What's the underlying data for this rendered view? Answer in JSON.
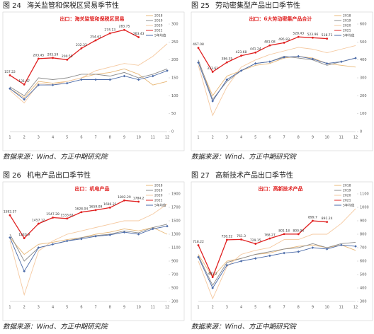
{
  "chart_data": [
    {
      "type": "line",
      "figure_label": "图 24",
      "title": "海关监管和保税区贸易季节性",
      "subtitle": "出口：海关监管和保税区贸易",
      "source": "数据来源：Wind、方正中期研究院",
      "categories": [
        "1",
        "2",
        "3",
        "4",
        "5",
        "6",
        "7",
        "8",
        "9",
        "10",
        "11",
        "12"
      ],
      "ylim": [
        0,
        300
      ],
      "yticks": [
        0,
        50,
        100,
        150,
        200,
        250,
        300
      ],
      "legend": "upper right",
      "series": [
        {
          "name": "2018",
          "color": "#e8b878",
          "values": [
            120,
            95,
            140,
            135,
            140,
            150,
            160,
            165,
            175,
            160,
            130,
            140
          ]
        },
        {
          "name": "2019",
          "color": "#8c8c8c",
          "values": [
            125,
            100,
            150,
            145,
            150,
            160,
            160,
            155,
            165,
            150,
            160,
            175
          ]
        },
        {
          "name": "2020",
          "color": "#f5c9a0",
          "values": [
            115,
            80,
            135,
            130,
            140,
            150,
            170,
            180,
            190,
            185,
            210,
            245
          ]
        },
        {
          "name": "2021",
          "color": "#e02020",
          "values": [
            157.22,
            131.47,
            203.45,
            205.59,
            200.55,
            232.33,
            254.61,
            274.13,
            283.75,
            263.43,
            null,
            null
          ]
        },
        {
          "name": "5年均值",
          "color": "#4a6aa8",
          "values": [
            120,
            90,
            130,
            130,
            135,
            145,
            145,
            145,
            155,
            145,
            155,
            170
          ]
        }
      ]
    },
    {
      "type": "line",
      "figure_label": "图 25",
      "title": "劳动密集型产品出口季节性",
      "subtitle": "出口：6大劳动密集产品合计",
      "source": "数据来源：Wind、方正中期研究院",
      "categories": [
        "1",
        "2",
        "3",
        "4",
        "5",
        "6",
        "7",
        "8",
        "9",
        "10",
        "11",
        "12"
      ],
      "ylim": [
        0,
        600
      ],
      "yticks": [
        0,
        100,
        200,
        300,
        400,
        500,
        600
      ],
      "legend": "upper right",
      "series": [
        {
          "name": "2018",
          "color": "#e8b878",
          "values": [
            390,
            200,
            310,
            340,
            370,
            380,
            410,
            420,
            410,
            380,
            370,
            360
          ]
        },
        {
          "name": "2019",
          "color": "#8c8c8c",
          "values": [
            400,
            180,
            280,
            340,
            380,
            390,
            420,
            410,
            400,
            370,
            390,
            410
          ]
        },
        {
          "name": "2020",
          "color": "#f5c9a0",
          "values": [
            370,
            90,
            250,
            360,
            400,
            430,
            450,
            470,
            460,
            440,
            460,
            480
          ]
        },
        {
          "name": "2021",
          "color": "#e02020",
          "values": [
            467.08,
            333.61,
            386.35,
            423.68,
            441.24,
            481.08,
            495.83,
            528.43,
            523.96,
            518.71,
            null,
            null
          ]
        },
        {
          "name": "5年均值",
          "color": "#4a6aa8",
          "values": [
            385,
            170,
            290,
            340,
            380,
            390,
            415,
            420,
            405,
            380,
            390,
            410
          ]
        }
      ]
    },
    {
      "type": "line",
      "figure_label": "图 26",
      "title": "机电产品出口季节性",
      "subtitle": "出口：机电产品",
      "source": "数据来源：Wind、方正中期研究院",
      "categories": [
        "1",
        "2",
        "3",
        "4",
        "5",
        "6",
        "7",
        "8",
        "9",
        "10",
        "11",
        "12"
      ],
      "ylim": [
        300,
        1900
      ],
      "yticks": [
        300,
        500,
        700,
        900,
        1100,
        1300,
        1500,
        1700,
        1900
      ],
      "legend": "upper right",
      "series": [
        {
          "name": "2018",
          "color": "#e8b878",
          "values": [
            1250,
            1000,
            1150,
            1180,
            1220,
            1250,
            1300,
            1330,
            1380,
            1350,
            1400,
            1300
          ]
        },
        {
          "name": "2019",
          "color": "#8c8c8c",
          "values": [
            1300,
            900,
            1100,
            1150,
            1200,
            1250,
            1280,
            1300,
            1350,
            1320,
            1400,
            1450
          ]
        },
        {
          "name": "2020",
          "color": "#f5c9a0",
          "values": [
            1200,
            400,
            1050,
            1200,
            1300,
            1350,
            1400,
            1450,
            1500,
            1500,
            1600,
            1750
          ]
        },
        {
          "name": "2021",
          "color": "#e02020",
          "values": [
            1582.37,
            1240.9,
            1457.12,
            1547.28,
            1533.61,
            1628.04,
            1659.09,
            1696.21,
            1802.29,
            1784.2,
            null,
            null
          ]
        },
        {
          "name": "5年均值",
          "color": "#4a6aa8",
          "values": [
            1250,
            750,
            1100,
            1150,
            1200,
            1230,
            1270,
            1290,
            1330,
            1300,
            1380,
            1420
          ]
        }
      ]
    },
    {
      "type": "line",
      "figure_label": "图 27",
      "title": "高新技术产品出口季节性",
      "subtitle": "出口：高新技术产品",
      "source": "数据来源：Wind、方正中期研究院",
      "categories": [
        "1",
        "2",
        "3",
        "4",
        "5",
        "6",
        "7",
        "8",
        "9",
        "10",
        "11",
        "12"
      ],
      "ylim": [
        300,
        1100
      ],
      "yticks": [
        300,
        400,
        500,
        600,
        700,
        800,
        900,
        1000,
        1100
      ],
      "legend": "upper right",
      "series": [
        {
          "name": "2018",
          "color": "#e8b878",
          "values": [
            650,
            480,
            600,
            620,
            650,
            660,
            690,
            710,
            720,
            700,
            720,
            680
          ]
        },
        {
          "name": "2019",
          "color": "#8c8c8c",
          "values": [
            640,
            420,
            590,
            620,
            650,
            670,
            690,
            700,
            730,
            700,
            730,
            740
          ]
        },
        {
          "name": "2020",
          "color": "#f5c9a0",
          "values": [
            600,
            320,
            560,
            650,
            680,
            700,
            760,
            760,
            800,
            800,
            880,
            990
          ]
        },
        {
          "name": "2021",
          "color": "#e02020",
          "values": [
            718.22,
            481.2,
            758.32,
            761.3,
            729.15,
            768.27,
            801.18,
            800.94,
            899.7,
            891.24,
            null,
            null
          ]
        },
        {
          "name": "5年均值",
          "color": "#4a6aa8",
          "values": [
            630,
            400,
            570,
            600,
            620,
            640,
            660,
            670,
            700,
            690,
            720,
            710
          ]
        }
      ]
    }
  ]
}
